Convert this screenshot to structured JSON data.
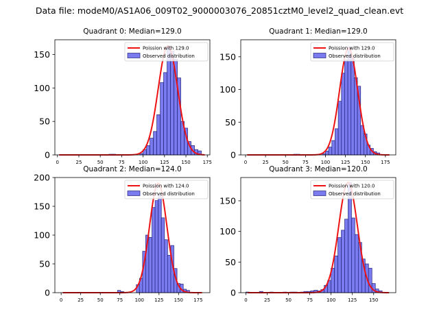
{
  "figure": {
    "suptitle": "Data file: modeM0/AS1A06_009T02_9000003076_20851cztM0_level2_quad_clean.evt"
  },
  "colors": {
    "bar_fill": "#7b7bf0",
    "bar_edge": "#23237a",
    "curve": "#ee1111"
  },
  "chart_data": [
    {
      "type": "bar",
      "title": "Quadrant 0: Median=129.0",
      "legend": {
        "location": "upper-right",
        "entries": [
          "Poission with 129.0",
          "Observed distribution"
        ]
      },
      "xlim": [
        -3,
        178
      ],
      "ylim": [
        0,
        172
      ],
      "xticks": [
        0,
        25,
        50,
        75,
        100,
        125,
        150,
        175
      ],
      "yticks": [
        0,
        50,
        100,
        150
      ],
      "bin_width": 4,
      "bins_x": [
        60,
        64,
        96,
        100,
        104,
        108,
        112,
        116,
        120,
        124,
        128,
        132,
        136,
        140,
        144,
        148,
        152,
        156,
        160,
        164
      ],
      "bins_y": [
        1,
        1,
        2,
        8,
        14,
        25,
        35,
        60,
        108,
        123,
        163,
        155,
        143,
        115,
        50,
        40,
        20,
        14,
        8,
        6
      ],
      "curve": {
        "mean": 129,
        "peak": 163,
        "sigma": 11.36,
        "x_range": [
          2,
          172
        ]
      }
    },
    {
      "type": "bar",
      "title": "Quadrant 1: Median=129.0",
      "legend": {
        "location": "upper-right",
        "entries": [
          "Poission with 129.0",
          "Observed distribution"
        ]
      },
      "xlim": [
        -6,
        188
      ],
      "ylim": [
        0,
        176
      ],
      "xticks": [
        0,
        25,
        50,
        75,
        100,
        125,
        150,
        175
      ],
      "yticks": [
        0,
        50,
        100,
        150
      ],
      "bin_width": 4,
      "bins_x": [
        60,
        64,
        96,
        100,
        104,
        108,
        112,
        116,
        120,
        124,
        128,
        132,
        136,
        140,
        144,
        148,
        152,
        156,
        160,
        164
      ],
      "bins_y": [
        1,
        1,
        2,
        6,
        12,
        22,
        40,
        82,
        125,
        145,
        165,
        150,
        118,
        105,
        45,
        32,
        15,
        10,
        5,
        3
      ],
      "curve": {
        "mean": 129,
        "peak": 163,
        "sigma": 11.36,
        "x_range": [
          2,
          180
        ]
      }
    },
    {
      "type": "bar",
      "title": "Quadrant 2: Median=124.0",
      "legend": {
        "location": "upper-right",
        "entries": [
          "Poission with 124.0",
          "Observed distribution"
        ]
      },
      "xlim": [
        -8,
        190
      ],
      "ylim": [
        0,
        200
      ],
      "xticks": [
        0,
        25,
        50,
        75,
        100,
        125,
        150,
        175
      ],
      "yticks": [
        0,
        50,
        100,
        150,
        200
      ],
      "bin_width": 4,
      "bins_x": [
        72,
        76,
        96,
        100,
        104,
        108,
        112,
        116,
        120,
        124,
        128,
        132,
        136,
        140,
        144,
        148,
        152,
        156,
        160
      ],
      "bins_y": [
        4,
        2,
        14,
        25,
        72,
        100,
        96,
        148,
        160,
        170,
        130,
        92,
        65,
        82,
        42,
        16,
        15,
        6,
        4
      ],
      "curve": {
        "mean": 124,
        "peak": 190,
        "sigma": 11.14,
        "x_range": [
          2,
          180
        ]
      }
    },
    {
      "type": "bar",
      "title": "Quadrant 3: Median=120.0",
      "legend": {
        "location": "upper-right",
        "entries": [
          "Poission with 120.0",
          "Observed distribution"
        ]
      },
      "xlim": [
        -6,
        176
      ],
      "ylim": [
        0,
        188
      ],
      "xticks": [
        0,
        25,
        50,
        75,
        100,
        125,
        150
      ],
      "yticks": [
        0,
        50,
        100,
        150
      ],
      "bin_width": 4,
      "bins_x": [
        0,
        16,
        28,
        44,
        52,
        56,
        64,
        68,
        72,
        76,
        80,
        84,
        88,
        92,
        96,
        100,
        104,
        108,
        112,
        116,
        120,
        124,
        128,
        132,
        136,
        140,
        144,
        148,
        152,
        156
      ],
      "bins_y": [
        1,
        2,
        1,
        1,
        1,
        1,
        1,
        2,
        2,
        3,
        4,
        3,
        5,
        12,
        20,
        40,
        60,
        90,
        102,
        120,
        180,
        122,
        95,
        82,
        55,
        47,
        40,
        15,
        6,
        3
      ],
      "curve": {
        "mean": 120,
        "peak": 180,
        "sigma": 10.95,
        "x_range": [
          2,
          168
        ]
      }
    }
  ]
}
